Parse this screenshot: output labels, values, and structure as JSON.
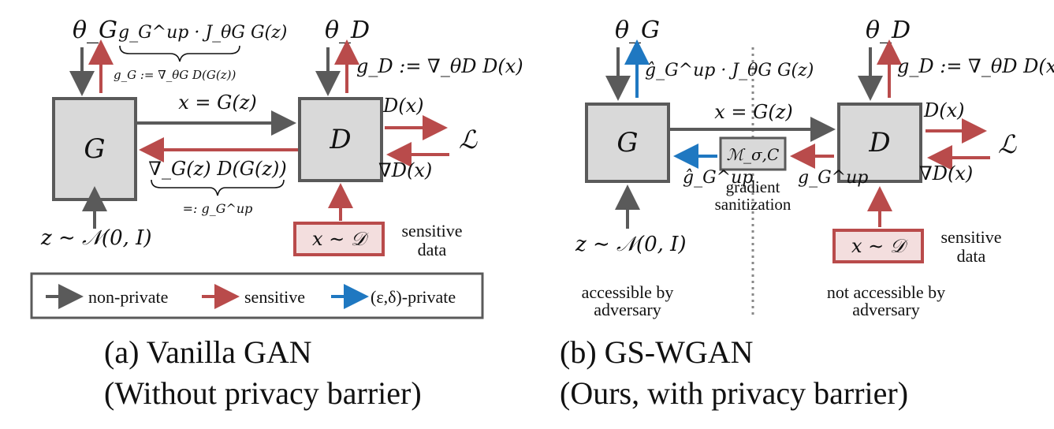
{
  "left": {
    "theta_g": "θ_G",
    "theta_d": "θ_D",
    "g_box": "G",
    "d_box": "D",
    "gen_grad_top": "g_G^up · J_θG G(z)",
    "gen_grad_sub": "g_G := ∇_θG D(G(z))",
    "gd_def": "g_D := ∇_θD D(x)",
    "x_eq": "x = G(z)",
    "dx": "D(x)",
    "loss": "ℒ",
    "grad_dx": "∇D(x)",
    "grad_gz": "∇_G(z) D(G(z))",
    "eq_gup": "=: g_G^up",
    "z_dist": "z ∼ 𝒩(0, I)",
    "x_data": "x ∼ 𝒟",
    "sensitive_line1": "sensitive",
    "sensitive_line2": "data"
  },
  "legend": {
    "items": [
      {
        "label": "non-private",
        "color": "#5a5a5a"
      },
      {
        "label": "sensitive",
        "color": "#b94b4b"
      },
      {
        "label": "(ε,δ)-private",
        "color": "#1f78c1"
      }
    ]
  },
  "right": {
    "theta_g": "θ_G",
    "theta_d": "θ_D",
    "g_box": "G",
    "d_box": "D",
    "gen_grad": "ĝ_G^up · J_θG G(z)",
    "gd_def": "g_D := ∇_θD D(x)",
    "x_eq": "x = G(z)",
    "dx": "D(x)",
    "loss": "ℒ",
    "grad_dx": "∇D(x)",
    "mech": "ℳ_σ,C",
    "g_hat_up": "ĝ_G^up",
    "g_up": "g_G^up",
    "sanitize_line1": "gradient",
    "sanitize_line2": "sanitization",
    "z_dist": "z ∼ 𝒩(0, I)",
    "x_data": "x ∼ 𝒟",
    "sensitive_line1": "sensitive",
    "sensitive_line2": "data",
    "access_line1": "accessible by",
    "access_line2": "adversary",
    "noaccess_line1": "not accessible by",
    "noaccess_line2": "adversary"
  },
  "captions": {
    "a_line1": "(a)  Vanilla GAN",
    "a_line2": "(Without privacy barrier)",
    "b_line1": "(b)  GS-WGAN",
    "b_line2": "(Ours, with privacy barrier)"
  },
  "colors": {
    "gray": "#5a5a5a",
    "red": "#b94b4b",
    "blue": "#1f78c1",
    "box_fill": "#d9d9d9",
    "data_fill": "#f3dede"
  }
}
